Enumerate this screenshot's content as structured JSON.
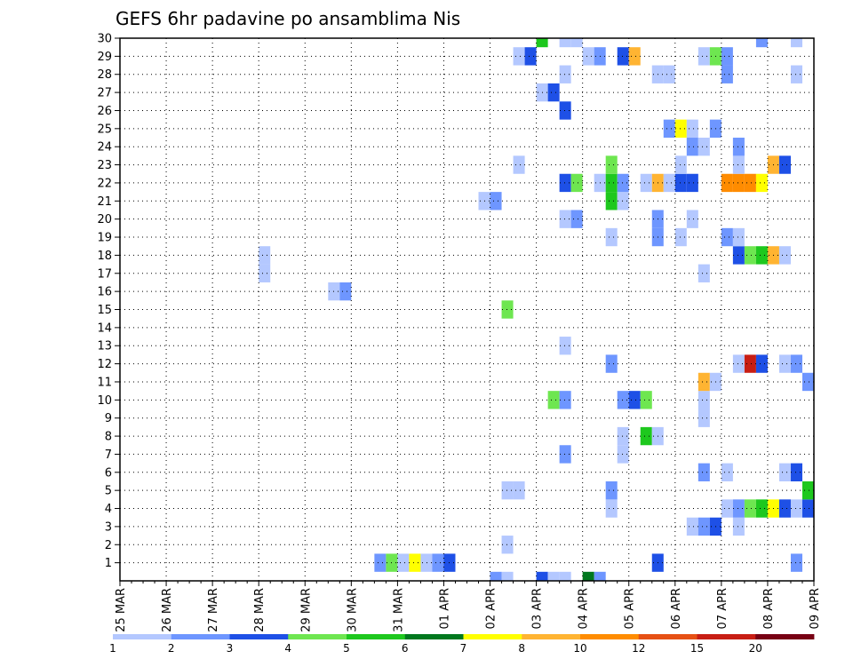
{
  "chart_data": {
    "type": "heatmap",
    "title": "GEFS 6hr padavine po ansamblima Nis",
    "x_tick_labels": [
      "25 MAR",
      "26 MAR",
      "27 MAR",
      "28 MAR",
      "29 MAR",
      "30 MAR",
      "31 MAR",
      "01 APR",
      "02 APR",
      "03 APR",
      "04 APR",
      "05 APR",
      "06 APR",
      "07 APR",
      "08 APR",
      "09 APR"
    ],
    "y_tick_labels": [
      "1",
      "2",
      "3",
      "4",
      "5",
      "6",
      "7",
      "8",
      "9",
      "10",
      "11",
      "12",
      "13",
      "14",
      "15",
      "16",
      "17",
      "18",
      "19",
      "20",
      "21",
      "22",
      "23",
      "24",
      "25",
      "26",
      "27",
      "28",
      "29",
      "30"
    ],
    "x_unit": "6-hour step from 25 MAR 00Z",
    "y_range": [
      0,
      30
    ],
    "x_range": [
      0,
      60
    ],
    "grid": true,
    "legend_position": "bottom",
    "legend": {
      "thresholds": [
        "1",
        "2",
        "3",
        "4",
        "5",
        "6",
        "7",
        "8",
        "10",
        "12",
        "15",
        "20"
      ],
      "colors": [
        "#b4c8ff",
        "#6e96ff",
        "#1e50e6",
        "#6ee650",
        "#1ec81e",
        "#00781e",
        "#ffff00",
        "#ffb432",
        "#ff8c00",
        "#e65014",
        "#c81e14",
        "#780014"
      ]
    },
    "cells": [
      {
        "member": 1,
        "step": 23,
        "cls": 2
      },
      {
        "member": 1,
        "step": 24,
        "cls": 4
      },
      {
        "member": 1,
        "step": 25,
        "cls": 1
      },
      {
        "member": 1,
        "step": 26,
        "cls": 7
      },
      {
        "member": 1,
        "step": 27,
        "cls": 1
      },
      {
        "member": 1,
        "step": 28,
        "cls": 2
      },
      {
        "member": 1,
        "step": 29,
        "cls": 3
      },
      {
        "member": 1,
        "step": 47,
        "cls": 3
      },
      {
        "member": 1,
        "step": 59,
        "cls": 2
      },
      {
        "member": 2,
        "step": 34,
        "cls": 1
      },
      {
        "member": 3,
        "step": 50,
        "cls": 1
      },
      {
        "member": 3,
        "step": 51,
        "cls": 2
      },
      {
        "member": 3,
        "step": 52,
        "cls": 3
      },
      {
        "member": 3,
        "step": 54,
        "cls": 1
      },
      {
        "member": 4,
        "step": 43,
        "cls": 1
      },
      {
        "member": 4,
        "step": 53,
        "cls": 1
      },
      {
        "member": 4,
        "step": 54,
        "cls": 2
      },
      {
        "member": 4,
        "step": 55,
        "cls": 4
      },
      {
        "member": 4,
        "step": 56,
        "cls": 5
      },
      {
        "member": 4,
        "step": 57,
        "cls": 7
      },
      {
        "member": 4,
        "step": 58,
        "cls": 3
      },
      {
        "member": 4,
        "step": 59,
        "cls": 1
      },
      {
        "member": 4,
        "step": 60,
        "cls": 3
      },
      {
        "member": 5,
        "step": 34,
        "cls": 1
      },
      {
        "member": 5,
        "step": 35,
        "cls": 1
      },
      {
        "member": 5,
        "step": 43,
        "cls": 2
      },
      {
        "member": 5,
        "step": 60,
        "cls": 5
      },
      {
        "member": 6,
        "step": 51,
        "cls": 2
      },
      {
        "member": 6,
        "step": 53,
        "cls": 1
      },
      {
        "member": 6,
        "step": 58,
        "cls": 1
      },
      {
        "member": 6,
        "step": 59,
        "cls": 3
      },
      {
        "member": 7,
        "step": 39,
        "cls": 2
      },
      {
        "member": 7,
        "step": 44,
        "cls": 1
      },
      {
        "member": 8,
        "step": 44,
        "cls": 1
      },
      {
        "member": 8,
        "step": 46,
        "cls": 5
      },
      {
        "member": 8,
        "step": 47,
        "cls": 1
      },
      {
        "member": 9,
        "step": 51,
        "cls": 1
      },
      {
        "member": 10,
        "step": 38,
        "cls": 4
      },
      {
        "member": 10,
        "step": 39,
        "cls": 2
      },
      {
        "member": 10,
        "step": 44,
        "cls": 2
      },
      {
        "member": 10,
        "step": 45,
        "cls": 3
      },
      {
        "member": 10,
        "step": 46,
        "cls": 4
      },
      {
        "member": 10,
        "step": 51,
        "cls": 1
      },
      {
        "member": 11,
        "step": 51,
        "cls": 8
      },
      {
        "member": 11,
        "step": 52,
        "cls": 1
      },
      {
        "member": 11,
        "step": 60,
        "cls": 2
      },
      {
        "member": 12,
        "step": 43,
        "cls": 2
      },
      {
        "member": 12,
        "step": 54,
        "cls": 1
      },
      {
        "member": 12,
        "step": 55,
        "cls": 11
      },
      {
        "member": 12,
        "step": 56,
        "cls": 3
      },
      {
        "member": 12,
        "step": 58,
        "cls": 1
      },
      {
        "member": 12,
        "step": 59,
        "cls": 2
      },
      {
        "member": 13,
        "step": 39,
        "cls": 1
      },
      {
        "member": 15,
        "step": 34,
        "cls": 4
      },
      {
        "member": 16,
        "step": 19,
        "cls": 1
      },
      {
        "member": 16,
        "step": 20,
        "cls": 2
      },
      {
        "member": 17,
        "step": 13,
        "cls": 1
      },
      {
        "member": 17,
        "step": 51,
        "cls": 1
      },
      {
        "member": 18,
        "step": 13,
        "cls": 1
      },
      {
        "member": 18,
        "step": 54,
        "cls": 3
      },
      {
        "member": 18,
        "step": 55,
        "cls": 4
      },
      {
        "member": 18,
        "step": 56,
        "cls": 5
      },
      {
        "member": 18,
        "step": 57,
        "cls": 8
      },
      {
        "member": 18,
        "step": 58,
        "cls": 1
      },
      {
        "member": 19,
        "step": 43,
        "cls": 1
      },
      {
        "member": 19,
        "step": 47,
        "cls": 2
      },
      {
        "member": 19,
        "step": 49,
        "cls": 1
      },
      {
        "member": 19,
        "step": 53,
        "cls": 2
      },
      {
        "member": 19,
        "step": 54,
        "cls": 1
      },
      {
        "member": 20,
        "step": 39,
        "cls": 1
      },
      {
        "member": 20,
        "step": 40,
        "cls": 2
      },
      {
        "member": 20,
        "step": 47,
        "cls": 2
      },
      {
        "member": 20,
        "step": 50,
        "cls": 1
      },
      {
        "member": 21,
        "step": 32,
        "cls": 1
      },
      {
        "member": 21,
        "step": 33,
        "cls": 2
      },
      {
        "member": 21,
        "step": 43,
        "cls": 5
      },
      {
        "member": 21,
        "step": 44,
        "cls": 1
      },
      {
        "member": 22,
        "step": 39,
        "cls": 3
      },
      {
        "member": 22,
        "step": 40,
        "cls": 4
      },
      {
        "member": 22,
        "step": 42,
        "cls": 1
      },
      {
        "member": 22,
        "step": 43,
        "cls": 5
      },
      {
        "member": 22,
        "step": 44,
        "cls": 2
      },
      {
        "member": 22,
        "step": 46,
        "cls": 1
      },
      {
        "member": 22,
        "step": 47,
        "cls": 8
      },
      {
        "member": 22,
        "step": 48,
        "cls": 1
      },
      {
        "member": 22,
        "step": 49,
        "cls": 3
      },
      {
        "member": 22,
        "step": 50,
        "cls": 3
      },
      {
        "member": 22,
        "step": 53,
        "cls": 9
      },
      {
        "member": 22,
        "step": 54,
        "cls": 9
      },
      {
        "member": 22,
        "step": 55,
        "cls": 9
      },
      {
        "member": 22,
        "step": 56,
        "cls": 7
      },
      {
        "member": 23,
        "step": 35,
        "cls": 1
      },
      {
        "member": 23,
        "step": 43,
        "cls": 4
      },
      {
        "member": 23,
        "step": 49,
        "cls": 1
      },
      {
        "member": 23,
        "step": 54,
        "cls": 1
      },
      {
        "member": 23,
        "step": 57,
        "cls": 8
      },
      {
        "member": 23,
        "step": 58,
        "cls": 3
      },
      {
        "member": 24,
        "step": 50,
        "cls": 2
      },
      {
        "member": 24,
        "step": 51,
        "cls": 1
      },
      {
        "member": 24,
        "step": 54,
        "cls": 2
      },
      {
        "member": 25,
        "step": 48,
        "cls": 2
      },
      {
        "member": 25,
        "step": 49,
        "cls": 7
      },
      {
        "member": 25,
        "step": 50,
        "cls": 1
      },
      {
        "member": 25,
        "step": 52,
        "cls": 2
      },
      {
        "member": 26,
        "step": 39,
        "cls": 3
      },
      {
        "member": 27,
        "step": 37,
        "cls": 1
      },
      {
        "member": 27,
        "step": 38,
        "cls": 3
      },
      {
        "member": 28,
        "step": 39,
        "cls": 1
      },
      {
        "member": 28,
        "step": 47,
        "cls": 1
      },
      {
        "member": 28,
        "step": 48,
        "cls": 1
      },
      {
        "member": 28,
        "step": 53,
        "cls": 2
      },
      {
        "member": 28,
        "step": 59,
        "cls": 1
      },
      {
        "member": 29,
        "step": 35,
        "cls": 1
      },
      {
        "member": 29,
        "step": 36,
        "cls": 3
      },
      {
        "member": 29,
        "step": 41,
        "cls": 1
      },
      {
        "member": 29,
        "step": 42,
        "cls": 2
      },
      {
        "member": 29,
        "step": 44,
        "cls": 3
      },
      {
        "member": 29,
        "step": 45,
        "cls": 8
      },
      {
        "member": 29,
        "step": 51,
        "cls": 1
      },
      {
        "member": 29,
        "step": 52,
        "cls": 4
      },
      {
        "member": 29,
        "step": 53,
        "cls": 2
      },
      {
        "member": 30,
        "step": 37,
        "cls": 5
      },
      {
        "member": 30,
        "step": 39,
        "cls": 1
      },
      {
        "member": 30,
        "step": 40,
        "cls": 1
      },
      {
        "member": 30,
        "step": 56,
        "cls": 2
      },
      {
        "member": 30,
        "step": 59,
        "cls": 1
      },
      {
        "member": 0,
        "step": 33,
        "cls": 2
      },
      {
        "member": 0,
        "step": 34,
        "cls": 1
      },
      {
        "member": 0,
        "step": 37,
        "cls": 3
      },
      {
        "member": 0,
        "step": 38,
        "cls": 1
      },
      {
        "member": 0,
        "step": 39,
        "cls": 1
      },
      {
        "member": 0,
        "step": 41,
        "cls": 6
      },
      {
        "member": 0,
        "step": 42,
        "cls": 2
      }
    ]
  }
}
